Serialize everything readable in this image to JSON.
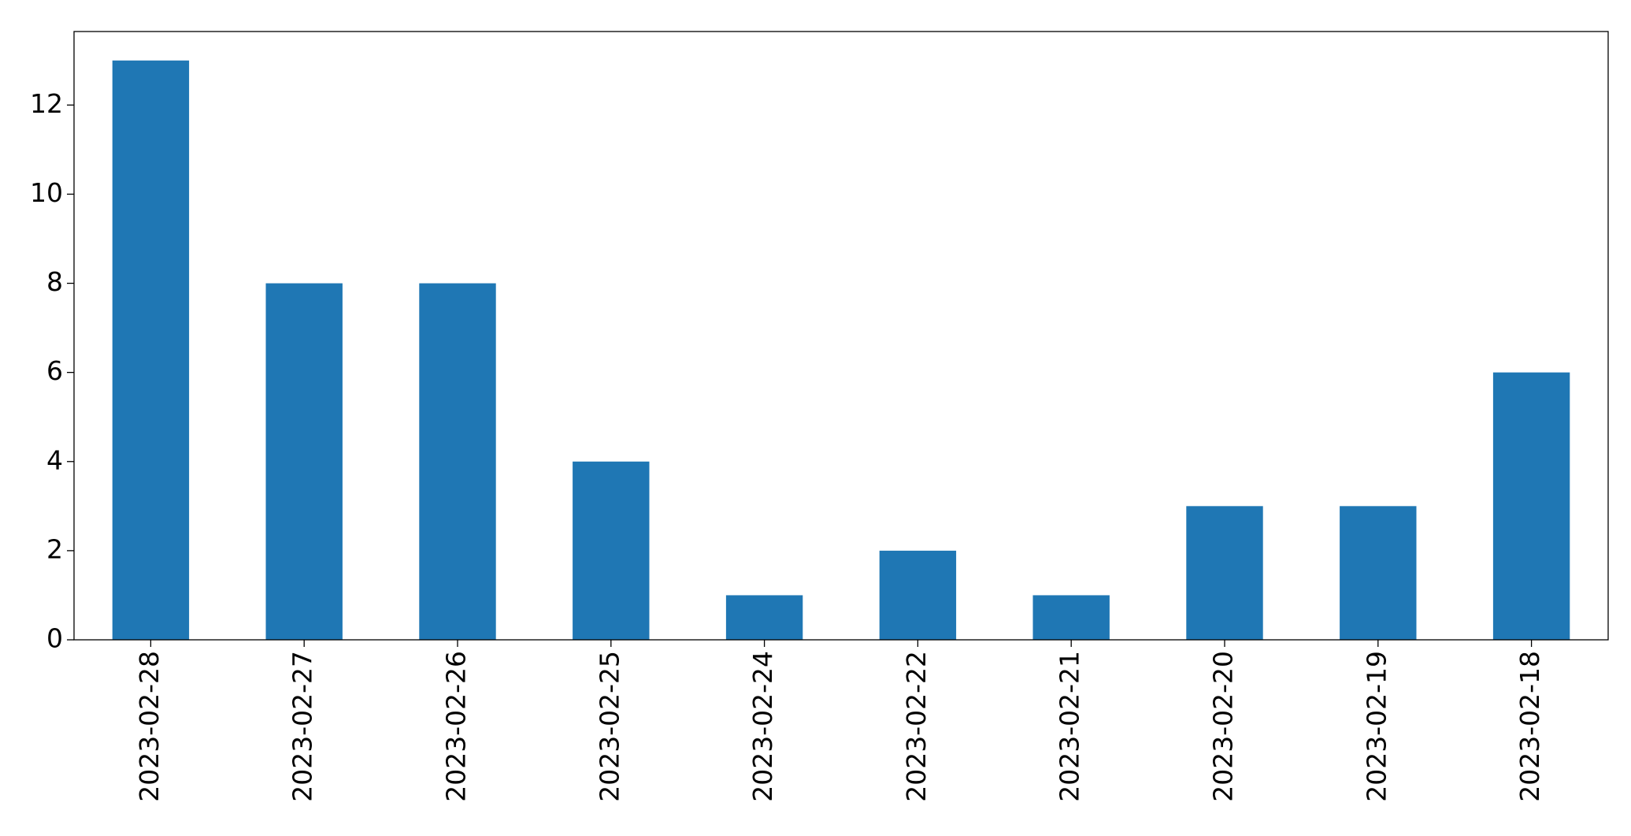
{
  "chart_data": {
    "type": "bar",
    "categories": [
      "2023-02-28",
      "2023-02-27",
      "2023-02-26",
      "2023-02-25",
      "2023-02-24",
      "2023-02-22",
      "2023-02-21",
      "2023-02-20",
      "2023-02-19",
      "2023-02-18"
    ],
    "values": [
      13,
      8,
      8,
      4,
      1,
      2,
      1,
      3,
      3,
      6
    ],
    "color": "#1f77b4",
    "ylim": [
      0,
      13.65
    ],
    "yticks": [
      0,
      2,
      4,
      6,
      8,
      10,
      12
    ],
    "grid": false
  }
}
